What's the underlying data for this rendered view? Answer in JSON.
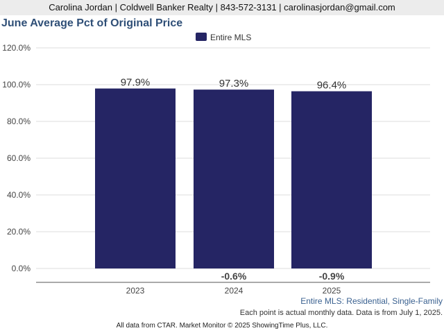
{
  "header": {
    "contact": "Carolina Jordan | Coldwell Banker Realty | 843-572-3131 | carolinasjordan@gmail.com"
  },
  "colors": {
    "bar": "#252564",
    "title": "#2f4f77",
    "header_bg": "#ececec",
    "grid": "#dddddd",
    "series_note": "#3a6190"
  },
  "footnotes": {
    "series": "Entire MLS: Residential, Single-Family",
    "data_note": "Each point is actual monthly data. Data is from July 1, 2025.",
    "source": "All data from CTAR. Market Monitor © 2025 ShowingTime Plus, LLC."
  },
  "chart_data": {
    "type": "bar",
    "title": "June Average Pct of Original Price",
    "categories": [
      "2023",
      "2024",
      "2025"
    ],
    "series": [
      {
        "name": "Entire MLS",
        "values": [
          97.9,
          97.3,
          96.4
        ]
      }
    ],
    "value_labels": [
      "97.9%",
      "97.3%",
      "96.4%"
    ],
    "change_labels": [
      "",
      "-0.6%",
      "-0.9%"
    ],
    "y_ticks": [
      "0.0%",
      "20.0%",
      "40.0%",
      "60.0%",
      "80.0%",
      "100.0%",
      "120.0%"
    ],
    "ylim": [
      0,
      120
    ],
    "grid": true,
    "legend_position": "top-center"
  }
}
